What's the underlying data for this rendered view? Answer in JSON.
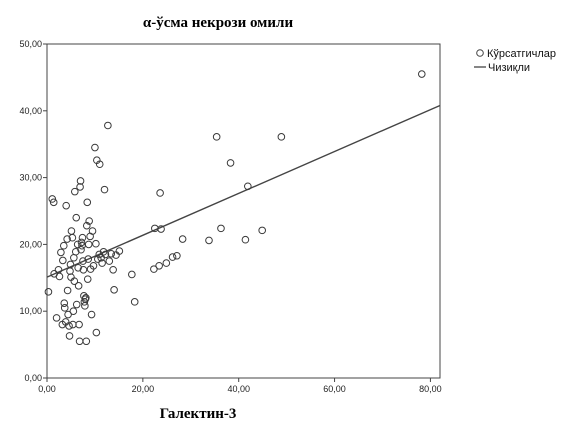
{
  "chart_data": {
    "type": "scatter",
    "title": "α-ўсма некрози омили",
    "xlabel": "Галектин-3",
    "ylabel": "",
    "xlim": [
      0,
      82
    ],
    "ylim": [
      0,
      50
    ],
    "x_ticks": [
      "0,00",
      "20,00",
      "40,00",
      "60,00",
      "80,00"
    ],
    "x_tick_values": [
      0,
      20,
      40,
      60,
      80
    ],
    "y_ticks": [
      "0,00",
      "10,00",
      "20,00",
      "30,00",
      "40,00",
      "50,00"
    ],
    "y_tick_values": [
      0,
      10,
      20,
      30,
      40,
      50
    ],
    "grid": false,
    "legend_position": "top-right",
    "legend": {
      "points_label": "Кўрсатгичлар",
      "line_label": "Чизиқли"
    },
    "fit_line": {
      "x": [
        0,
        82
      ],
      "y": [
        15.1,
        40.8
      ]
    },
    "points": [
      [
        0.3,
        12.9
      ],
      [
        1.1,
        26.8
      ],
      [
        1.4,
        26.3
      ],
      [
        1.5,
        15.6
      ],
      [
        2.0,
        9.0
      ],
      [
        2.4,
        16.2
      ],
      [
        2.6,
        15.2
      ],
      [
        2.9,
        18.8
      ],
      [
        3.2,
        8.0
      ],
      [
        3.3,
        17.6
      ],
      [
        3.5,
        19.8
      ],
      [
        3.6,
        11.2
      ],
      [
        3.7,
        10.5
      ],
      [
        3.9,
        8.4
      ],
      [
        4.0,
        25.8
      ],
      [
        4.2,
        20.8
      ],
      [
        4.3,
        13.1
      ],
      [
        4.4,
        9.5
      ],
      [
        4.6,
        7.8
      ],
      [
        4.7,
        6.3
      ],
      [
        4.8,
        16.0
      ],
      [
        4.9,
        17.0
      ],
      [
        5.0,
        15.1
      ],
      [
        5.1,
        22.0
      ],
      [
        5.3,
        21.0
      ],
      [
        5.4,
        8.0
      ],
      [
        5.5,
        10.0
      ],
      [
        5.6,
        18.0
      ],
      [
        5.7,
        14.5
      ],
      [
        5.8,
        27.9
      ],
      [
        6.0,
        18.9
      ],
      [
        6.1,
        24.0
      ],
      [
        6.2,
        11.0
      ],
      [
        6.4,
        20.0
      ],
      [
        6.5,
        16.5
      ],
      [
        6.6,
        13.8
      ],
      [
        6.7,
        8.0
      ],
      [
        6.8,
        5.5
      ],
      [
        6.9,
        28.6
      ],
      [
        7.0,
        29.5
      ],
      [
        7.1,
        19.2
      ],
      [
        7.2,
        20.3
      ],
      [
        7.3,
        19.8
      ],
      [
        7.4,
        21.0
      ],
      [
        7.5,
        17.5
      ],
      [
        7.6,
        16.2
      ],
      [
        7.7,
        12.3
      ],
      [
        7.8,
        11.4
      ],
      [
        7.9,
        10.8
      ],
      [
        8.0,
        11.8
      ],
      [
        8.1,
        12.0
      ],
      [
        8.2,
        5.5
      ],
      [
        8.3,
        22.8
      ],
      [
        8.4,
        26.3
      ],
      [
        8.5,
        14.8
      ],
      [
        8.6,
        17.8
      ],
      [
        8.7,
        20.0
      ],
      [
        8.8,
        23.5
      ],
      [
        9.0,
        21.2
      ],
      [
        9.1,
        16.3
      ],
      [
        9.3,
        9.5
      ],
      [
        9.5,
        22.0
      ],
      [
        9.7,
        16.8
      ],
      [
        10.0,
        34.5
      ],
      [
        10.2,
        20.1
      ],
      [
        10.3,
        6.8
      ],
      [
        10.4,
        32.6
      ],
      [
        10.6,
        17.8
      ],
      [
        10.9,
        18.5
      ],
      [
        11.0,
        32.0
      ],
      [
        11.3,
        18.0
      ],
      [
        11.5,
        17.2
      ],
      [
        11.8,
        18.9
      ],
      [
        12.0,
        28.2
      ],
      [
        12.2,
        18.5
      ],
      [
        12.7,
        37.8
      ],
      [
        13.0,
        17.5
      ],
      [
        13.4,
        18.6
      ],
      [
        13.8,
        16.2
      ],
      [
        14.0,
        13.2
      ],
      [
        14.4,
        18.4
      ],
      [
        15.1,
        19.0
      ],
      [
        17.7,
        15.5
      ],
      [
        18.3,
        11.4
      ],
      [
        22.3,
        16.3
      ],
      [
        22.5,
        22.4
      ],
      [
        23.4,
        16.8
      ],
      [
        23.6,
        27.7
      ],
      [
        23.8,
        22.3
      ],
      [
        24.9,
        17.2
      ],
      [
        26.2,
        18.1
      ],
      [
        27.1,
        18.3
      ],
      [
        28.3,
        20.8
      ],
      [
        33.8,
        20.6
      ],
      [
        35.4,
        36.1
      ],
      [
        36.3,
        22.4
      ],
      [
        38.3,
        32.2
      ],
      [
        41.4,
        20.7
      ],
      [
        41.9,
        28.7
      ],
      [
        44.9,
        22.1
      ],
      [
        48.9,
        36.1
      ],
      [
        78.2,
        45.5
      ]
    ]
  }
}
